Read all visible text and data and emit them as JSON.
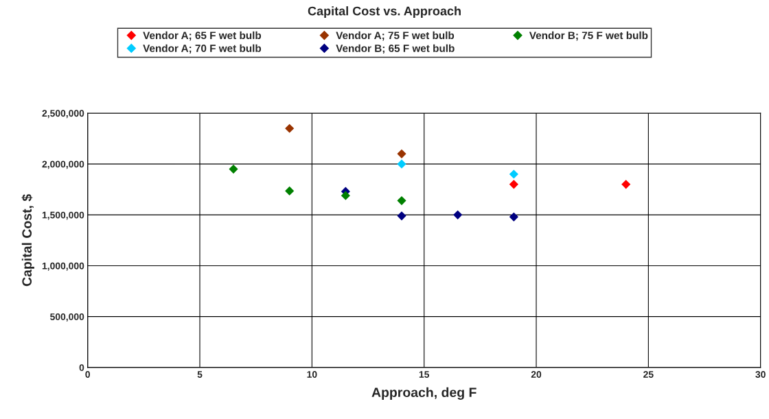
{
  "chart_data": {
    "type": "scatter",
    "title": "Capital Cost vs. Approach",
    "xlabel": "Approach, deg F",
    "ylabel": "Capital Cost, $",
    "series": [
      {
        "name": "Vendor A; 65 F wet bulb",
        "color": "#ff0000",
        "x": [
          19,
          24
        ],
        "values": [
          1800000,
          1800000
        ]
      },
      {
        "name": "Vendor A; 70 F wet bulb",
        "color": "#00ccff",
        "x": [
          14,
          19
        ],
        "values": [
          2000000,
          1900000
        ]
      },
      {
        "name": "Vendor A; 75 F wet bulb",
        "color": "#993300",
        "x": [
          9,
          14
        ],
        "values": [
          2350000,
          2100000
        ]
      },
      {
        "name": "Vendor B; 65 F wet bulb",
        "color": "#000080",
        "x": [
          11.5,
          14,
          16.5,
          19
        ],
        "values": [
          1730000,
          1490000,
          1500000,
          1480000
        ]
      },
      {
        "name": "Vendor B; 75 F wet bulb",
        "color": "#008000",
        "x": [
          6.5,
          9,
          11.5,
          14
        ],
        "values": [
          1950000,
          1735000,
          1690000,
          1640000
        ]
      }
    ],
    "xlim": [
      0,
      30
    ],
    "xticks": [
      0,
      5,
      10,
      15,
      20,
      25,
      30
    ],
    "ylim": [
      0,
      2500000
    ],
    "yticks": [
      0,
      {
        "value": 500000,
        "label": "500,000"
      },
      {
        "value": 1000000,
        "label": "1,000,000"
      },
      {
        "value": 1500000,
        "label": "1,500,000"
      },
      {
        "value": 2000000,
        "label": "2,000,000"
      },
      {
        "value": 2500000,
        "label": "2,500,000"
      }
    ],
    "grid": true,
    "legend": "top",
    "marker": "diamond"
  }
}
